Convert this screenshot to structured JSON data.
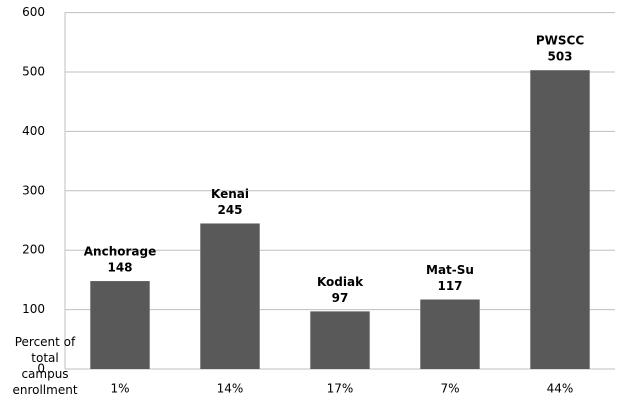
{
  "chart_data": {
    "type": "bar",
    "x_label": "Percent of total campus enrollment",
    "categories": [
      "1%",
      "14%",
      "17%",
      "7%",
      "44%"
    ],
    "bar_labels": [
      "Anchorage",
      "Kenai",
      "Kodiak",
      "Mat-Su",
      "PWSCC"
    ],
    "values": [
      148,
      245,
      97,
      117,
      503
    ],
    "color": "#595959",
    "ylim": [
      0,
      600
    ],
    "yticks": [
      0,
      100,
      200,
      300,
      400,
      500,
      600
    ],
    "grid": true
  }
}
